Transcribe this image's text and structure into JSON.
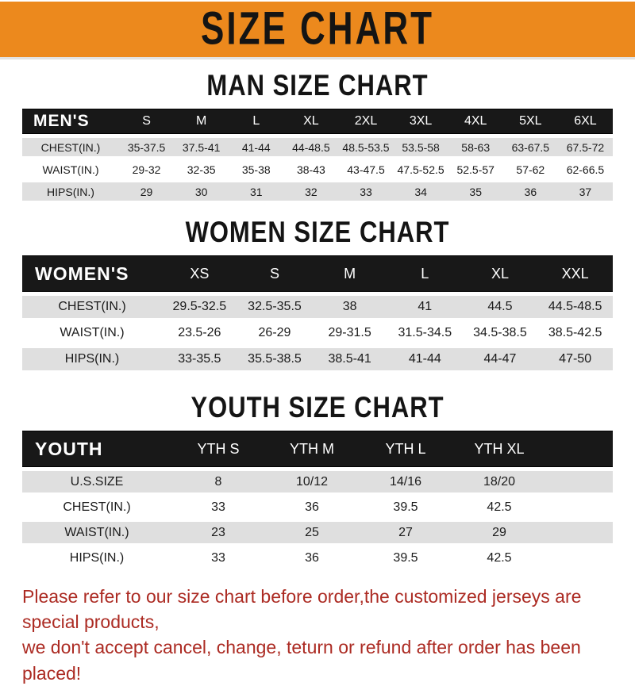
{
  "banner": {
    "title": "SIZE CHART"
  },
  "sections": [
    {
      "id": "men",
      "title": "MAN SIZE CHART",
      "corner_label": "MEN'S",
      "columns": [
        "S",
        "M",
        "L",
        "XL",
        "2XL",
        "3XL",
        "4XL",
        "5XL",
        "6XL"
      ],
      "rows": [
        {
          "label": "CHEST(IN.)",
          "values": [
            "35-37.5",
            "37.5-41",
            "41-44",
            "44-48.5",
            "48.5-53.5",
            "53.5-58",
            "58-63",
            "63-67.5",
            "67.5-72"
          ]
        },
        {
          "label": "WAIST(IN.)",
          "values": [
            "29-32",
            "32-35",
            "35-38",
            "38-43",
            "43-47.5",
            "47.5-52.5",
            "52.5-57",
            "57-62",
            "62-66.5"
          ]
        },
        {
          "label": "HIPS(IN.)",
          "values": [
            "29",
            "30",
            "31",
            "32",
            "33",
            "34",
            "35",
            "36",
            "37"
          ]
        }
      ]
    },
    {
      "id": "women",
      "title": "WOMEN SIZE CHART",
      "corner_label": "WOMEN'S",
      "columns": [
        "XS",
        "S",
        "M",
        "L",
        "XL",
        "XXL"
      ],
      "rows": [
        {
          "label": "CHEST(IN.)",
          "values": [
            "29.5-32.5",
            "32.5-35.5",
            "38",
            "41",
            "44.5",
            "44.5-48.5"
          ]
        },
        {
          "label": "WAIST(IN.)",
          "values": [
            "23.5-26",
            "26-29",
            "29-31.5",
            "31.5-34.5",
            "34.5-38.5",
            "38.5-42.5"
          ]
        },
        {
          "label": "HIPS(IN.)",
          "values": [
            "33-35.5",
            "35.5-38.5",
            "38.5-41",
            "41-44",
            "44-47",
            "47-50"
          ]
        }
      ]
    },
    {
      "id": "youth",
      "title": "YOUTH SIZE CHART",
      "corner_label": "YOUTH",
      "columns": [
        "YTH S",
        "YTH M",
        "YTH L",
        "YTH XL"
      ],
      "rows": [
        {
          "label": "U.S.SIZE",
          "values": [
            "8",
            "10/12",
            "14/16",
            "18/20"
          ]
        },
        {
          "label": "CHEST(IN.)",
          "values": [
            "33",
            "36",
            "39.5",
            "42.5"
          ]
        },
        {
          "label": "WAIST(IN.)",
          "values": [
            "23",
            "25",
            "27",
            "29"
          ]
        },
        {
          "label": "HIPS(IN.)",
          "values": [
            "33",
            "36",
            "39.5",
            "42.5"
          ]
        }
      ]
    }
  ],
  "footer": {
    "lines": [
      "Please refer to our size chart before order,the customized jerseys are special products,",
      "we don't accept cancel, change, teturn or refund after order has been placed!"
    ]
  },
  "colors": {
    "banner_bg": "#EC891D",
    "banner_text": "#141414",
    "bar": "#181818",
    "band_gray": "#DFDFDF",
    "red": "#AC2B23"
  }
}
